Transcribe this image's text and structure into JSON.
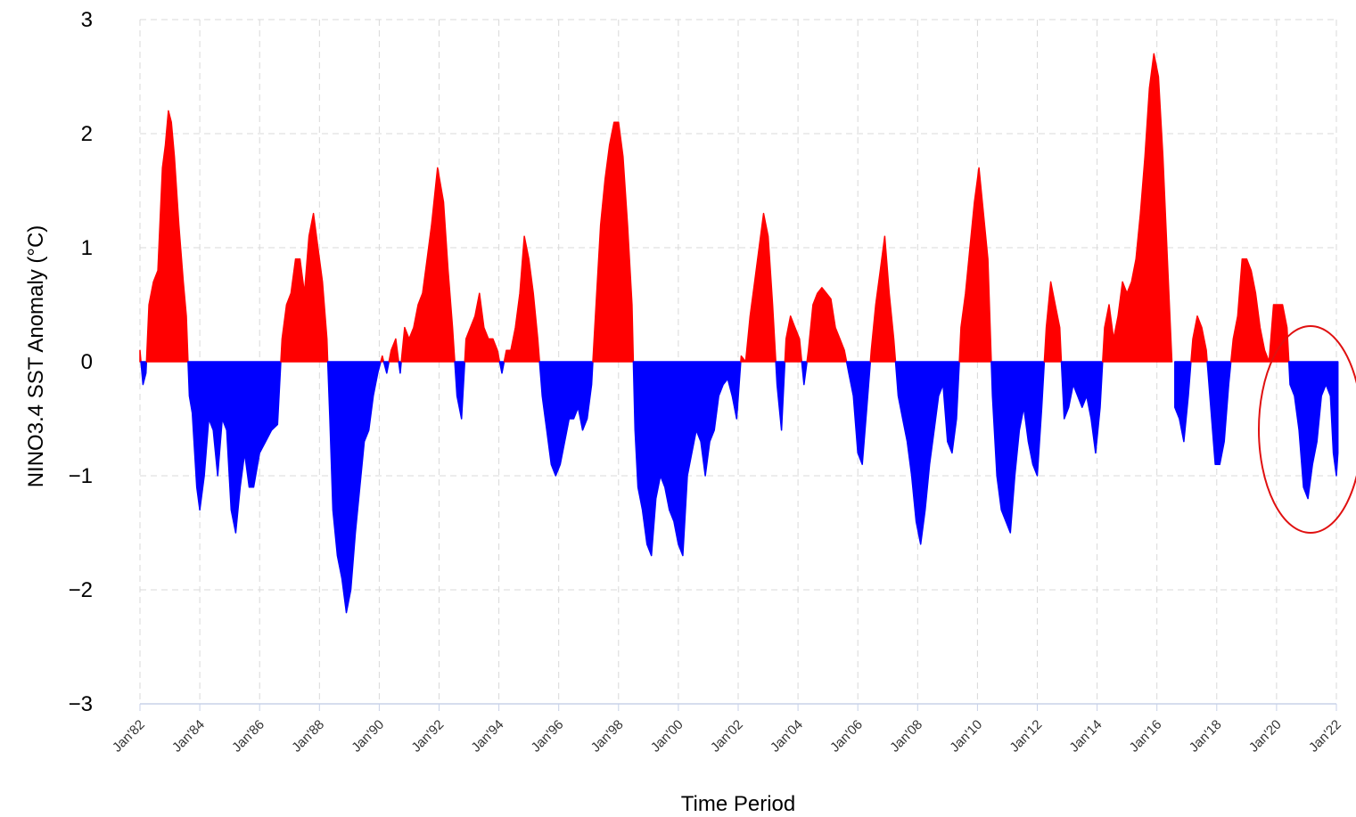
{
  "chart_data": {
    "type": "area",
    "title": "",
    "xlabel": "Time Period",
    "ylabel": "NINO3.4 SST Anomaly (°C)",
    "ylim": [
      -3,
      3
    ],
    "yticks": [
      3,
      2,
      1,
      0,
      -1,
      -2,
      -3
    ],
    "xlim": [
      1982.0,
      2022.0
    ],
    "xtick_labels": [
      "Jan'82",
      "Jan'84",
      "Jan'86",
      "Jan'88",
      "Jan'90",
      "Jan'92",
      "Jan'94",
      "Jan'96",
      "Jan'98",
      "Jan'00",
      "Jan'02",
      "Jan'04",
      "Jan'06",
      "Jan'08",
      "Jan'10",
      "Jan'12",
      "Jan'14",
      "Jan'16",
      "Jan'18",
      "Jan'20",
      "Jan'22"
    ],
    "grid": true,
    "colors": {
      "positive": "#ff0000",
      "negative": "#0000ff",
      "annotation": "#e01010",
      "grid": "#d9d9d9",
      "axis": "#c8d2e8"
    },
    "annotation": {
      "shape": "ellipse",
      "highlight_range": [
        "Jan'20",
        "Jan'22"
      ]
    },
    "series": [
      {
        "points": [
          [
            1982.0,
            0.1
          ],
          [
            1982.1,
            -0.2
          ],
          [
            1982.2,
            -0.1
          ],
          [
            1982.3,
            0.5
          ],
          [
            1982.45,
            0.7
          ],
          [
            1982.6,
            0.8
          ],
          [
            1982.75,
            1.7
          ],
          [
            1982.85,
            1.9
          ],
          [
            1982.95,
            2.2
          ],
          [
            1983.05,
            2.1
          ],
          [
            1983.15,
            1.8
          ],
          [
            1983.3,
            1.2
          ],
          [
            1983.45,
            0.7
          ],
          [
            1983.55,
            0.4
          ],
          [
            1983.65,
            -0.3
          ],
          [
            1983.75,
            -0.45
          ],
          [
            1983.9,
            -1.1
          ],
          [
            1984.0,
            -1.3
          ],
          [
            1984.15,
            -1.0
          ],
          [
            1984.3,
            -0.5
          ],
          [
            1984.45,
            -0.6
          ],
          [
            1984.6,
            -1.0
          ],
          [
            1984.75,
            -0.5
          ],
          [
            1984.9,
            -0.6
          ],
          [
            1985.05,
            -1.3
          ],
          [
            1985.2,
            -1.5
          ],
          [
            1985.35,
            -1.1
          ],
          [
            1985.5,
            -0.8
          ],
          [
            1985.65,
            -1.1
          ],
          [
            1985.8,
            -1.1
          ],
          [
            1986.0,
            -0.8
          ],
          [
            1986.2,
            -0.7
          ],
          [
            1986.4,
            -0.6
          ],
          [
            1986.6,
            -0.55
          ],
          [
            1986.75,
            0.2
          ],
          [
            1986.9,
            0.5
          ],
          [
            1987.05,
            0.6
          ],
          [
            1987.2,
            0.9
          ],
          [
            1987.35,
            0.9
          ],
          [
            1987.5,
            0.6
          ],
          [
            1987.65,
            1.1
          ],
          [
            1987.8,
            1.3
          ],
          [
            1987.95,
            1.0
          ],
          [
            1988.1,
            0.7
          ],
          [
            1988.25,
            0.2
          ],
          [
            1988.35,
            -0.5
          ],
          [
            1988.45,
            -1.3
          ],
          [
            1988.6,
            -1.7
          ],
          [
            1988.75,
            -1.9
          ],
          [
            1988.9,
            -2.2
          ],
          [
            1989.05,
            -2.0
          ],
          [
            1989.2,
            -1.5
          ],
          [
            1989.35,
            -1.1
          ],
          [
            1989.5,
            -0.7
          ],
          [
            1989.65,
            -0.6
          ],
          [
            1989.8,
            -0.3
          ],
          [
            1989.95,
            -0.1
          ],
          [
            1990.1,
            0.05
          ],
          [
            1990.25,
            -0.1
          ],
          [
            1990.4,
            0.1
          ],
          [
            1990.55,
            0.2
          ],
          [
            1990.7,
            -0.1
          ],
          [
            1990.85,
            0.3
          ],
          [
            1991.0,
            0.2
          ],
          [
            1991.15,
            0.3
          ],
          [
            1991.3,
            0.5
          ],
          [
            1991.45,
            0.6
          ],
          [
            1991.6,
            0.9
          ],
          [
            1991.75,
            1.2
          ],
          [
            1991.95,
            1.7
          ],
          [
            1992.15,
            1.4
          ],
          [
            1992.3,
            0.8
          ],
          [
            1992.45,
            0.3
          ],
          [
            1992.6,
            -0.3
          ],
          [
            1992.75,
            -0.5
          ],
          [
            1992.9,
            0.2
          ],
          [
            1993.05,
            0.3
          ],
          [
            1993.2,
            0.4
          ],
          [
            1993.35,
            0.6
          ],
          [
            1993.5,
            0.3
          ],
          [
            1993.65,
            0.2
          ],
          [
            1993.8,
            0.2
          ],
          [
            1993.95,
            0.1
          ],
          [
            1994.1,
            -0.1
          ],
          [
            1994.25,
            0.1
          ],
          [
            1994.4,
            0.1
          ],
          [
            1994.55,
            0.3
          ],
          [
            1994.7,
            0.6
          ],
          [
            1994.85,
            1.1
          ],
          [
            1995.0,
            0.9
          ],
          [
            1995.15,
            0.6
          ],
          [
            1995.3,
            0.2
          ],
          [
            1995.45,
            -0.3
          ],
          [
            1995.6,
            -0.6
          ],
          [
            1995.75,
            -0.9
          ],
          [
            1995.9,
            -1.0
          ],
          [
            1996.05,
            -0.9
          ],
          [
            1996.2,
            -0.7
          ],
          [
            1996.35,
            -0.5
          ],
          [
            1996.5,
            -0.5
          ],
          [
            1996.65,
            -0.4
          ],
          [
            1996.8,
            -0.6
          ],
          [
            1996.95,
            -0.5
          ],
          [
            1997.1,
            -0.2
          ],
          [
            1997.25,
            0.5
          ],
          [
            1997.4,
            1.2
          ],
          [
            1997.55,
            1.6
          ],
          [
            1997.7,
            1.9
          ],
          [
            1997.85,
            2.1
          ],
          [
            1998.0,
            2.1
          ],
          [
            1998.15,
            1.8
          ],
          [
            1998.3,
            1.2
          ],
          [
            1998.45,
            0.5
          ],
          [
            1998.55,
            -0.6
          ],
          [
            1998.65,
            -1.1
          ],
          [
            1998.8,
            -1.3
          ],
          [
            1998.95,
            -1.6
          ],
          [
            1999.1,
            -1.7
          ],
          [
            1999.25,
            -1.2
          ],
          [
            1999.4,
            -1.0
          ],
          [
            1999.55,
            -1.1
          ],
          [
            1999.7,
            -1.3
          ],
          [
            1999.85,
            -1.4
          ],
          [
            2000.0,
            -1.6
          ],
          [
            2000.15,
            -1.7
          ],
          [
            2000.3,
            -1.0
          ],
          [
            2000.45,
            -0.8
          ],
          [
            2000.6,
            -0.6
          ],
          [
            2000.75,
            -0.7
          ],
          [
            2000.9,
            -1.0
          ],
          [
            2001.05,
            -0.7
          ],
          [
            2001.2,
            -0.6
          ],
          [
            2001.35,
            -0.3
          ],
          [
            2001.5,
            -0.2
          ],
          [
            2001.65,
            -0.15
          ],
          [
            2001.8,
            -0.3
          ],
          [
            2001.95,
            -0.5
          ],
          [
            2002.1,
            0.05
          ],
          [
            2002.25,
            0.0
          ],
          [
            2002.4,
            0.4
          ],
          [
            2002.55,
            0.7
          ],
          [
            2002.7,
            1.0
          ],
          [
            2002.85,
            1.3
          ],
          [
            2003.0,
            1.1
          ],
          [
            2003.15,
            0.5
          ],
          [
            2003.3,
            -0.2
          ],
          [
            2003.45,
            -0.6
          ],
          [
            2003.6,
            0.2
          ],
          [
            2003.75,
            0.4
          ],
          [
            2003.9,
            0.3
          ],
          [
            2004.05,
            0.2
          ],
          [
            2004.2,
            -0.2
          ],
          [
            2004.35,
            0.1
          ],
          [
            2004.5,
            0.5
          ],
          [
            2004.65,
            0.6
          ],
          [
            2004.8,
            0.65
          ],
          [
            2004.95,
            0.6
          ],
          [
            2005.1,
            0.55
          ],
          [
            2005.25,
            0.3
          ],
          [
            2005.4,
            0.2
          ],
          [
            2005.55,
            0.1
          ],
          [
            2005.7,
            -0.1
          ],
          [
            2005.85,
            -0.3
          ],
          [
            2006.0,
            -0.8
          ],
          [
            2006.15,
            -0.9
          ],
          [
            2006.3,
            -0.4
          ],
          [
            2006.45,
            0.1
          ],
          [
            2006.6,
            0.5
          ],
          [
            2006.75,
            0.8
          ],
          [
            2006.9,
            1.1
          ],
          [
            2007.05,
            0.6
          ],
          [
            2007.2,
            0.2
          ],
          [
            2007.35,
            -0.3
          ],
          [
            2007.5,
            -0.5
          ],
          [
            2007.65,
            -0.7
          ],
          [
            2007.8,
            -1.0
          ],
          [
            2007.95,
            -1.4
          ],
          [
            2008.1,
            -1.6
          ],
          [
            2008.25,
            -1.3
          ],
          [
            2008.4,
            -0.9
          ],
          [
            2008.55,
            -0.6
          ],
          [
            2008.7,
            -0.3
          ],
          [
            2008.85,
            -0.2
          ],
          [
            2009.0,
            -0.7
          ],
          [
            2009.15,
            -0.8
          ],
          [
            2009.3,
            -0.5
          ],
          [
            2009.45,
            0.3
          ],
          [
            2009.6,
            0.6
          ],
          [
            2009.75,
            1.0
          ],
          [
            2009.9,
            1.4
          ],
          [
            2010.05,
            1.7
          ],
          [
            2010.2,
            1.3
          ],
          [
            2010.35,
            0.9
          ],
          [
            2010.5,
            -0.3
          ],
          [
            2010.65,
            -1.0
          ],
          [
            2010.8,
            -1.3
          ],
          [
            2010.95,
            -1.4
          ],
          [
            2011.1,
            -1.5
          ],
          [
            2011.25,
            -1.0
          ],
          [
            2011.4,
            -0.6
          ],
          [
            2011.55,
            -0.4
          ],
          [
            2011.7,
            -0.7
          ],
          [
            2011.85,
            -0.9
          ],
          [
            2012.0,
            -1.0
          ],
          [
            2012.15,
            -0.4
          ],
          [
            2012.3,
            0.3
          ],
          [
            2012.45,
            0.7
          ],
          [
            2012.6,
            0.5
          ],
          [
            2012.75,
            0.3
          ],
          [
            2012.9,
            -0.5
          ],
          [
            2013.05,
            -0.4
          ],
          [
            2013.2,
            -0.2
          ],
          [
            2013.35,
            -0.3
          ],
          [
            2013.5,
            -0.4
          ],
          [
            2013.65,
            -0.3
          ],
          [
            2013.8,
            -0.5
          ],
          [
            2013.95,
            -0.8
          ],
          [
            2014.1,
            -0.4
          ],
          [
            2014.25,
            0.3
          ],
          [
            2014.4,
            0.5
          ],
          [
            2014.55,
            0.2
          ],
          [
            2014.7,
            0.4
          ],
          [
            2014.85,
            0.7
          ],
          [
            2015.0,
            0.6
          ],
          [
            2015.15,
            0.7
          ],
          [
            2015.3,
            0.9
          ],
          [
            2015.45,
            1.3
          ],
          [
            2015.6,
            1.8
          ],
          [
            2015.75,
            2.4
          ],
          [
            2015.9,
            2.7
          ],
          [
            2016.05,
            2.5
          ],
          [
            2016.2,
            1.8
          ],
          [
            2016.35,
            0.9
          ],
          [
            2016.5,
            0.0
          ],
          [
            2016.6,
            -0.4
          ],
          [
            2016.75,
            -0.5
          ],
          [
            2016.9,
            -0.7
          ],
          [
            2017.05,
            -0.3
          ],
          [
            2017.2,
            0.2
          ],
          [
            2017.35,
            0.4
          ],
          [
            2017.5,
            0.3
          ],
          [
            2017.65,
            0.1
          ],
          [
            2017.8,
            -0.4
          ],
          [
            2017.95,
            -0.9
          ],
          [
            2018.1,
            -0.9
          ],
          [
            2018.25,
            -0.7
          ],
          [
            2018.4,
            -0.2
          ],
          [
            2018.55,
            0.2
          ],
          [
            2018.7,
            0.4
          ],
          [
            2018.85,
            0.9
          ],
          [
            2019.0,
            0.9
          ],
          [
            2019.15,
            0.8
          ],
          [
            2019.3,
            0.6
          ],
          [
            2019.45,
            0.3
          ],
          [
            2019.6,
            0.1
          ],
          [
            2019.75,
            0.0
          ],
          [
            2019.9,
            0.5
          ],
          [
            2020.05,
            0.5
          ],
          [
            2020.2,
            0.5
          ],
          [
            2020.35,
            0.3
          ],
          [
            2020.45,
            -0.2
          ],
          [
            2020.6,
            -0.3
          ],
          [
            2020.75,
            -0.6
          ],
          [
            2020.9,
            -1.1
          ],
          [
            2021.05,
            -1.2
          ],
          [
            2021.2,
            -0.9
          ],
          [
            2021.35,
            -0.7
          ],
          [
            2021.5,
            -0.3
          ],
          [
            2021.65,
            -0.2
          ],
          [
            2021.8,
            -0.3
          ],
          [
            2021.9,
            -0.8
          ],
          [
            2022.0,
            -1.0
          ],
          [
            2022.05,
            -0.8
          ]
        ]
      }
    ]
  }
}
